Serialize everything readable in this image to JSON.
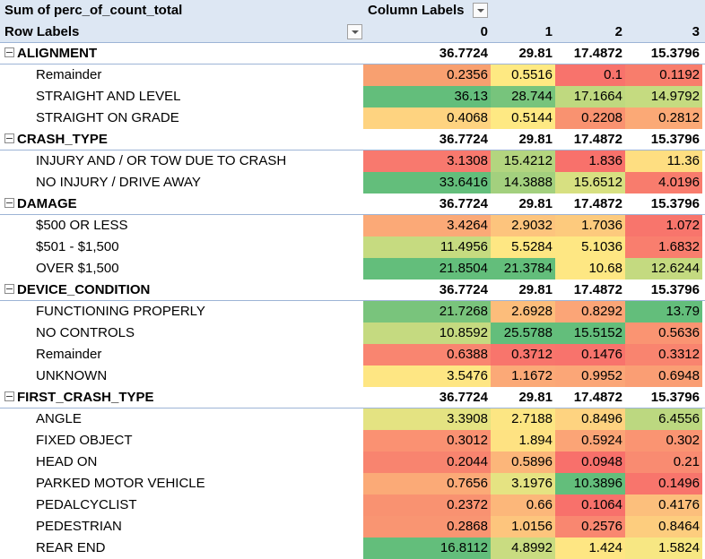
{
  "pivot": {
    "value_field": "Sum of perc_of_count_total",
    "column_labels": "Column Labels",
    "row_labels": "Row Labels",
    "columns": [
      "0",
      "1",
      "2",
      "3"
    ],
    "groups": [
      {
        "name": "ALIGNMENT",
        "totals": [
          "36.7724",
          "29.81",
          "17.4872",
          "15.3796"
        ],
        "items": [
          {
            "label": "Remainder",
            "values": [
              "0.2356",
              "0.5516",
              "0.1",
              "0.1192"
            ],
            "colors": [
              "#f8a070",
              "#fee982",
              "#f8736c",
              "#f87d6c"
            ]
          },
          {
            "label": "STRAIGHT AND LEVEL",
            "values": [
              "36.13",
              "28.744",
              "17.1664",
              "14.9792"
            ],
            "colors": [
              "#63be7b",
              "#77c47c",
              "#bfd97f",
              "#c5db80"
            ]
          },
          {
            "label": "STRAIGHT ON GRADE",
            "values": [
              "0.4068",
              "0.5144",
              "0.2208",
              "0.2812"
            ],
            "colors": [
              "#fed380",
              "#fee983",
              "#f99270",
              "#fba976"
            ]
          }
        ]
      },
      {
        "name": "CRASH_TYPE",
        "totals": [
          "36.7724",
          "29.81",
          "17.4872",
          "15.3796"
        ],
        "items": [
          {
            "label": "INJURY AND / OR TOW DUE TO CRASH",
            "values": [
              "3.1308",
              "15.4212",
              "1.836",
              "11.36"
            ],
            "colors": [
              "#f8796e",
              "#b3d57f",
              "#f8716b",
              "#fede81"
            ]
          },
          {
            "label": "NO INJURY / DRIVE AWAY",
            "values": [
              "33.6416",
              "14.3888",
              "15.6512",
              "4.0196"
            ],
            "colors": [
              "#63be7b",
              "#a3d07e",
              "#d7e081",
              "#f87c6d"
            ]
          }
        ]
      },
      {
        "name": "DAMAGE",
        "totals": [
          "36.7724",
          "29.81",
          "17.4872",
          "15.3796"
        ],
        "items": [
          {
            "label": "$500 OR LESS",
            "values": [
              "3.4264",
              "2.9032",
              "1.7036",
              "1.072"
            ],
            "colors": [
              "#fba977",
              "#fdc47d",
              "#fdca7d",
              "#f8756c"
            ]
          },
          {
            "label": "$501 - $1,500",
            "values": [
              "11.4956",
              "5.5284",
              "5.1036",
              "1.6832"
            ],
            "colors": [
              "#c6db80",
              "#fee783",
              "#fee783",
              "#f97e6e"
            ]
          },
          {
            "label": "OVER $1,500",
            "values": [
              "21.8504",
              "21.3784",
              "10.68",
              "12.6244"
            ],
            "colors": [
              "#63be7b",
              "#63be7b",
              "#fee783",
              "#c4da80"
            ]
          }
        ]
      },
      {
        "name": "DEVICE_CONDITION",
        "totals": [
          "36.7724",
          "29.81",
          "17.4872",
          "15.3796"
        ],
        "items": [
          {
            "label": "FUNCTIONING PROPERLY",
            "values": [
              "21.7268",
              "2.6928",
              "0.8292",
              "13.79"
            ],
            "colors": [
              "#79c47c",
              "#fcbd7b",
              "#fba577",
              "#63be7b"
            ]
          },
          {
            "label": "NO CONTROLS",
            "values": [
              "10.8592",
              "25.5788",
              "15.5152",
              "0.5636"
            ],
            "colors": [
              "#c5da80",
              "#63be7b",
              "#63be7b",
              "#fa9472"
            ]
          },
          {
            "label": "Remainder",
            "values": [
              "0.6388",
              "0.3712",
              "0.1476",
              "0.3312"
            ],
            "colors": [
              "#f98570",
              "#f8756c",
              "#f8736c",
              "#f9846f"
            ]
          },
          {
            "label": "UNKNOWN",
            "values": [
              "3.5476",
              "1.1672",
              "0.9952",
              "0.6948"
            ],
            "colors": [
              "#fee683",
              "#fba977",
              "#fba677",
              "#fa9e74"
            ]
          }
        ]
      },
      {
        "name": "FIRST_CRASH_TYPE",
        "totals": [
          "36.7724",
          "29.81",
          "17.4872",
          "15.3796"
        ],
        "items": [
          {
            "label": "ANGLE",
            "values": [
              "3.3908",
              "2.7188",
              "0.8496",
              "6.4556"
            ],
            "colors": [
              "#e4e382",
              "#fce683",
              "#fed380",
              "#bcd880"
            ]
          },
          {
            "label": "FIXED OBJECT",
            "values": [
              "0.3012",
              "1.894",
              "0.5924",
              "0.302"
            ],
            "colors": [
              "#fa9172",
              "#fee282",
              "#fba476",
              "#fa9472"
            ]
          },
          {
            "label": "HEAD ON",
            "values": [
              "0.2044",
              "0.5896",
              "0.0948",
              "0.21"
            ],
            "colors": [
              "#f8846f",
              "#fcb67a",
              "#f8706b",
              "#f98b71"
            ]
          },
          {
            "label": "PARKED MOTOR VEHICLE",
            "values": [
              "0.7656",
              "3.1976",
              "10.3896",
              "0.1496"
            ],
            "colors": [
              "#fbaa77",
              "#e5e382",
              "#63be7b",
              "#f8756c"
            ]
          },
          {
            "label": "PEDALCYCLIST",
            "values": [
              "0.2372",
              "0.66",
              "0.1064",
              "0.4176"
            ],
            "colors": [
              "#f99271",
              "#fcb77a",
              "#f8716b",
              "#fcbf7c"
            ]
          },
          {
            "label": "PEDESTRIAN",
            "values": [
              "0.2868",
              "1.0156",
              "0.2576",
              "0.8464"
            ],
            "colors": [
              "#f99572",
              "#fdc57d",
              "#f98770",
              "#fdcd7e"
            ]
          },
          {
            "label": "REAR END",
            "values": [
              "16.8112",
              "4.8992",
              "1.424",
              "1.5824"
            ],
            "colors": [
              "#63be7b",
              "#c9dc81",
              "#fee683",
              "#f7e783"
            ]
          }
        ]
      }
    ]
  }
}
